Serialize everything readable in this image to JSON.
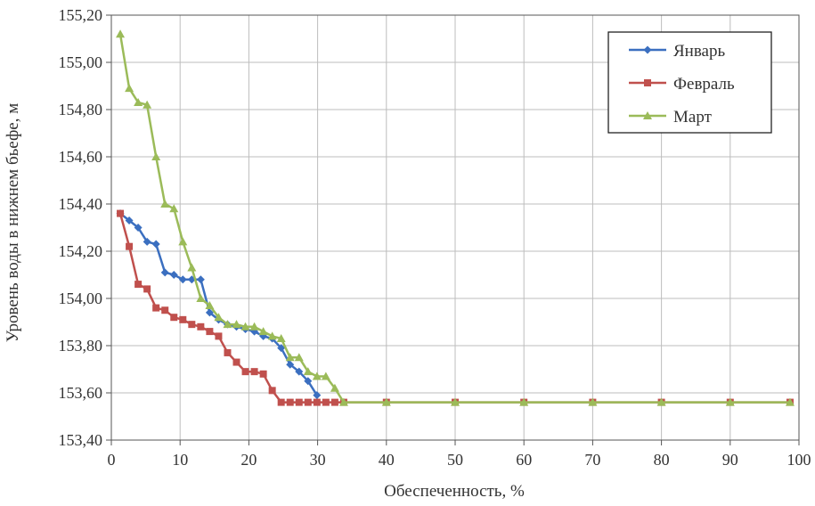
{
  "chart_data": {
    "type": "line",
    "title": "",
    "xlabel": "Обеспеченность, %",
    "ylabel": "Уровень воды в нижнем бьефе, м",
    "xlim": [
      0,
      100
    ],
    "ylim": [
      153.4,
      155.2
    ],
    "x_ticks": [
      "0",
      "10",
      "20",
      "30",
      "40",
      "50",
      "60",
      "70",
      "80",
      "90",
      "100"
    ],
    "y_ticks": [
      "153,40",
      "153,60",
      "153,80",
      "154,00",
      "154,20",
      "154,40",
      "154,60",
      "154,80",
      "155,00",
      "155,20"
    ],
    "grid": true,
    "legend_position": "top-right",
    "series": [
      {
        "name": "Январь",
        "color": "#3b6fc0",
        "marker": "diamond",
        "x": [
          1.3,
          2.6,
          3.9,
          5.2,
          6.5,
          7.8,
          9.1,
          10.4,
          11.7,
          13.0,
          14.3,
          15.6,
          16.9,
          18.2,
          19.5,
          20.8,
          22.1,
          23.4,
          24.7,
          26.0,
          27.3,
          28.6,
          29.9
        ],
        "y": [
          154.36,
          154.33,
          154.3,
          154.24,
          154.23,
          154.11,
          154.1,
          154.08,
          154.08,
          154.08,
          153.94,
          153.91,
          153.89,
          153.88,
          153.87,
          153.86,
          153.84,
          153.83,
          153.79,
          153.72,
          153.69,
          153.65,
          153.59
        ]
      },
      {
        "name": "Февраль",
        "color": "#c0504d",
        "marker": "square",
        "x": [
          1.3,
          2.6,
          3.9,
          5.2,
          6.5,
          7.8,
          9.1,
          10.4,
          11.7,
          13.0,
          14.3,
          15.6,
          16.9,
          18.2,
          19.5,
          20.8,
          22.1,
          23.4,
          24.7,
          26.0,
          27.3,
          28.6,
          29.9,
          31.2,
          32.5,
          33.8,
          40,
          50,
          60,
          70,
          80,
          90,
          98.7
        ],
        "y": [
          154.36,
          154.22,
          154.06,
          154.04,
          153.96,
          153.95,
          153.92,
          153.91,
          153.89,
          153.88,
          153.86,
          153.84,
          153.77,
          153.73,
          153.69,
          153.69,
          153.68,
          153.61,
          153.56,
          153.56,
          153.56,
          153.56,
          153.56,
          153.56,
          153.56,
          153.56,
          153.56,
          153.56,
          153.56,
          153.56,
          153.56,
          153.56,
          153.56
        ]
      },
      {
        "name": "Март",
        "color": "#9bbb59",
        "marker": "triangle",
        "x": [
          1.3,
          2.6,
          3.9,
          5.2,
          6.5,
          7.8,
          9.1,
          10.4,
          11.7,
          13.0,
          14.3,
          15.6,
          16.9,
          18.2,
          19.5,
          20.8,
          22.1,
          23.4,
          24.7,
          26.0,
          27.3,
          28.6,
          29.9,
          31.2,
          32.5,
          33.8,
          40,
          50,
          60,
          70,
          80,
          90,
          98.7
        ],
        "y": [
          155.12,
          154.89,
          154.83,
          154.82,
          154.6,
          154.4,
          154.38,
          154.24,
          154.13,
          154.0,
          153.97,
          153.92,
          153.89,
          153.89,
          153.88,
          153.88,
          153.86,
          153.84,
          153.83,
          153.75,
          153.75,
          153.69,
          153.67,
          153.67,
          153.62,
          153.56,
          153.56,
          153.56,
          153.56,
          153.56,
          153.56,
          153.56,
          153.56
        ]
      }
    ]
  }
}
